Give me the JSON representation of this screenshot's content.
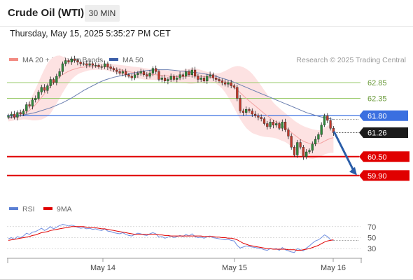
{
  "header": {
    "title": "Crude Oil (WTI)",
    "timeframe": "30 MIN",
    "datetime": "Thursday, May 15, 2025 5:35:27 PM CET"
  },
  "legend": {
    "bollinger": {
      "label": "MA 20 + Bollinger Bands",
      "color": "#f28b82"
    },
    "ma50": {
      "label": "MA 50",
      "color": "#3b5ea8"
    },
    "credit": "Research © 2025 Trading Central"
  },
  "rsi_legend": {
    "rsi": {
      "label": "RSI",
      "color": "#5b7fd4"
    },
    "ma9": {
      "label": "9MA",
      "color": "#e00000"
    }
  },
  "chart_data": [
    {
      "type": "candlestick",
      "ylim": [
        59.25,
        63.25
      ],
      "x_labels": [
        "May 14",
        "May 15",
        "May 16"
      ],
      "levels": [
        {
          "label": "62.85",
          "value": 62.85,
          "style": "target",
          "color": "#9acb6b"
        },
        {
          "label": "62.35",
          "value": 62.35,
          "style": "target",
          "color": "#9acb6b"
        },
        {
          "label": "61.80",
          "value": 61.8,
          "style": "pivot",
          "color": "#3a6fe0"
        },
        {
          "label": "61.26",
          "value": 61.26,
          "style": "last",
          "color": "#1b1b1b"
        },
        {
          "label": "60.50",
          "value": 60.5,
          "style": "support",
          "color": "#e00000"
        },
        {
          "label": "59.90",
          "value": 59.9,
          "style": "support",
          "color": "#e00000"
        }
      ],
      "close": [
        61.8,
        61.85,
        61.75,
        61.9,
        61.85,
        61.95,
        62.15,
        62.1,
        62.3,
        62.35,
        62.55,
        62.7,
        62.6,
        62.75,
        62.95,
        62.85,
        63.05,
        63.2,
        63.45,
        63.55,
        63.5,
        63.6,
        63.55,
        63.5,
        63.45,
        63.45,
        63.4,
        63.45,
        63.4,
        63.4,
        63.35,
        63.35,
        63.45,
        63.35,
        63.3,
        63.25,
        63.2,
        63.15,
        63.2,
        63.1,
        63.05,
        63.0,
        63.1,
        63.15,
        63.2,
        63.1,
        63.05,
        63.15,
        63.3,
        63.2,
        62.95,
        63.0,
        62.9,
        62.95,
        63.05,
        62.95,
        63.0,
        63.1,
        63.05,
        63.2,
        63.1,
        63.25,
        63.05,
        62.95,
        63.0,
        62.9,
        63.05,
        63.1,
        63.0,
        62.95,
        62.9,
        62.85,
        62.8,
        62.85,
        62.75,
        62.7,
        62.35,
        61.95,
        61.9,
        62.0,
        61.95,
        61.85,
        61.8,
        61.75,
        61.7,
        61.55,
        61.45,
        61.6,
        61.5,
        61.55,
        61.4,
        61.6,
        61.35,
        61.15,
        60.8,
        60.55,
        60.95,
        60.8,
        60.5,
        60.65,
        60.7,
        60.9,
        61.05,
        61.2,
        61.5,
        61.8,
        61.65,
        61.4,
        61.26
      ],
      "ma20": [
        61.72,
        61.73,
        61.75,
        61.77,
        61.8,
        61.84,
        61.9,
        61.97,
        62.05,
        62.15,
        62.26,
        62.38,
        62.5,
        62.62,
        62.73,
        62.84,
        62.94,
        63.03,
        63.1,
        63.16,
        63.21,
        63.25,
        63.28,
        63.31,
        63.33,
        63.34,
        63.35,
        63.36,
        63.36,
        63.36,
        63.36,
        63.36,
        63.35,
        63.34,
        63.32,
        63.3,
        63.28,
        63.26,
        63.24,
        63.22,
        63.2,
        63.18,
        63.17,
        63.16,
        63.15,
        63.13,
        63.12,
        63.11,
        63.11,
        63.1,
        63.09,
        63.08,
        63.07,
        63.06,
        63.05,
        63.05,
        63.04,
        63.04,
        63.04,
        63.05,
        63.05,
        63.06,
        63.06,
        63.06,
        63.05,
        63.04,
        63.03,
        63.02,
        63.0,
        62.98,
        62.95,
        62.92,
        62.88,
        62.83,
        62.77,
        62.7,
        62.62,
        62.53,
        62.44,
        62.35,
        62.27,
        62.19,
        62.11,
        62.03,
        61.95,
        61.87,
        61.8,
        61.73,
        61.66,
        61.6,
        61.54,
        61.48,
        61.42,
        61.35,
        61.27,
        61.19,
        61.12,
        61.05,
        60.99,
        60.95,
        60.92,
        60.9,
        60.9,
        60.91,
        60.94,
        60.99,
        61.04,
        61.08,
        61.1
      ],
      "bb_width": [
        0.1,
        0.1,
        0.1,
        0.11,
        0.13,
        0.16,
        0.22,
        0.3,
        0.4,
        0.5,
        0.6,
        0.7,
        0.78,
        0.84,
        0.86,
        0.82,
        0.76,
        0.68,
        0.58,
        0.48,
        0.38,
        0.3,
        0.24,
        0.2,
        0.17,
        0.15,
        0.13,
        0.12,
        0.11,
        0.1,
        0.1,
        0.1,
        0.1,
        0.11,
        0.12,
        0.13,
        0.14,
        0.15,
        0.16,
        0.17,
        0.18,
        0.18,
        0.18,
        0.18,
        0.18,
        0.18,
        0.18,
        0.17,
        0.17,
        0.17,
        0.17,
        0.17,
        0.17,
        0.17,
        0.18,
        0.18,
        0.19,
        0.2,
        0.21,
        0.22,
        0.24,
        0.25,
        0.24,
        0.22,
        0.2,
        0.18,
        0.16,
        0.15,
        0.15,
        0.16,
        0.2,
        0.26,
        0.34,
        0.44,
        0.55,
        0.66,
        0.76,
        0.84,
        0.9,
        0.94,
        0.95,
        0.94,
        0.9,
        0.85,
        0.8,
        0.74,
        0.68,
        0.62,
        0.56,
        0.52,
        0.5,
        0.48,
        0.46,
        0.45,
        0.45,
        0.45,
        0.46,
        0.47,
        0.48,
        0.48,
        0.48,
        0.47,
        0.45,
        0.43,
        0.42,
        0.42,
        0.44,
        0.46,
        0.48
      ],
      "ma50": [
        61.75,
        61.76,
        61.77,
        61.78,
        61.8,
        61.82,
        61.84,
        61.86,
        61.88,
        61.9,
        61.93,
        61.96,
        61.99,
        62.02,
        62.05,
        62.09,
        62.13,
        62.17,
        62.21,
        62.26,
        62.31,
        62.36,
        62.42,
        62.48,
        62.54,
        62.6,
        62.65,
        62.7,
        62.75,
        62.8,
        62.85,
        62.89,
        62.93,
        62.96,
        62.99,
        63.02,
        63.04,
        63.06,
        63.08,
        63.1,
        63.12,
        63.14,
        63.16,
        63.18,
        63.2,
        63.22,
        63.23,
        63.24,
        63.25,
        63.26,
        63.26,
        63.26,
        63.26,
        63.26,
        63.25,
        63.24,
        63.23,
        63.22,
        63.21,
        63.2,
        63.19,
        63.18,
        63.17,
        63.16,
        63.15,
        63.13,
        63.11,
        63.09,
        63.07,
        63.05,
        63.02,
        62.99,
        62.96,
        62.93,
        62.9,
        62.86,
        62.82,
        62.78,
        62.74,
        62.7,
        62.66,
        62.62,
        62.58,
        62.54,
        62.5,
        62.46,
        62.42,
        62.38,
        62.34,
        62.3,
        62.26,
        62.22,
        62.18,
        62.14,
        62.1,
        62.06,
        62.02,
        61.98,
        61.94,
        61.9,
        61.87,
        61.84,
        61.81,
        61.78,
        61.76,
        61.74,
        61.72,
        61.7,
        61.68
      ]
    },
    {
      "type": "line",
      "title": "RSI",
      "yticks": [
        30,
        50,
        70
      ],
      "ylim": [
        15,
        85
      ],
      "rsi": [
        48,
        50,
        47,
        52,
        50,
        53,
        58,
        56,
        60,
        61,
        64,
        67,
        63,
        66,
        70,
        66,
        69,
        72,
        74,
        73,
        71,
        73,
        71,
        69,
        67,
        68,
        66,
        67,
        65,
        66,
        64,
        63,
        66,
        62,
        61,
        59,
        58,
        57,
        59,
        56,
        54,
        53,
        56,
        58,
        57,
        55,
        54,
        57,
        59,
        57,
        51,
        52,
        49,
        51,
        53,
        50,
        52,
        54,
        52,
        56,
        53,
        57,
        52,
        50,
        51,
        49,
        52,
        53,
        50,
        49,
        48,
        47,
        46,
        47,
        45,
        44,
        36,
        31,
        33,
        35,
        34,
        33,
        32,
        31,
        30,
        28,
        27,
        30,
        29,
        30,
        27,
        32,
        28,
        26,
        24,
        23,
        30,
        28,
        26,
        31,
        35,
        40,
        44,
        46,
        50,
        55,
        52,
        46,
        45
      ],
      "ma9": [
        45,
        46,
        47,
        48,
        49,
        50,
        51,
        52,
        54,
        55,
        57,
        59,
        60,
        61,
        63,
        64,
        65,
        66,
        67,
        68,
        69,
        70,
        70,
        70,
        70,
        70,
        69,
        69,
        68,
        68,
        67,
        66,
        66,
        65,
        64,
        63,
        62,
        61,
        60,
        59,
        58,
        57,
        56,
        56,
        56,
        56,
        56,
        56,
        56,
        56,
        55,
        55,
        54,
        54,
        53,
        53,
        53,
        53,
        53,
        53,
        53,
        53,
        53,
        53,
        53,
        52,
        52,
        52,
        52,
        51,
        51,
        50,
        50,
        49,
        49,
        48,
        46,
        43,
        40,
        38,
        36,
        35,
        34,
        33,
        32,
        31,
        30,
        30,
        29,
        29,
        29,
        29,
        29,
        28,
        28,
        28,
        27,
        27,
        28,
        29,
        30,
        32,
        34,
        36,
        39,
        42,
        44,
        45,
        46
      ]
    }
  ]
}
